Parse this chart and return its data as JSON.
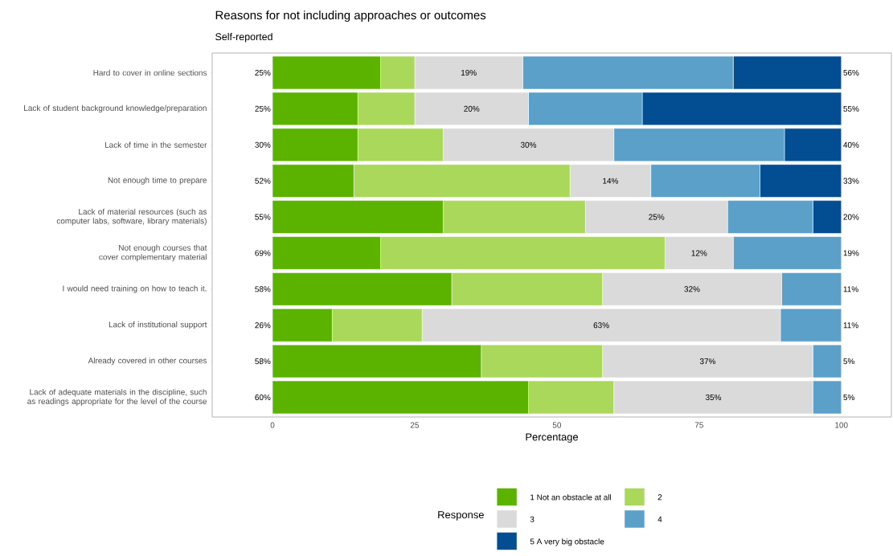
{
  "chart_data": {
    "type": "bar",
    "orientation": "horizontal",
    "stacked": true,
    "title": "Reasons for not including approaches or outcomes",
    "subtitle": "Self-reported",
    "xlabel": "Percentage",
    "legend_title": "Response",
    "legend": "bottom",
    "categories": [
      "Hard to cover in online sections",
      "Lack of student background knowledge/preparation",
      "Lack of time in the semester",
      "Not enough time to prepare",
      "Lack of material resources (such as computer labs, software, library materials)",
      "Not enough courses that cover complementary material",
      "I would need training on how to teach it.",
      "Lack of institutional support",
      "Already covered in other courses",
      "Lack of adequate materials in the discipline, such as readings appropriate for the level of the course"
    ],
    "series": [
      {
        "name": "1  Not an obstacle at all",
        "color": "#5bb300",
        "values": [
          19,
          15,
          15,
          14.3,
          30,
          19,
          31.5,
          10.5,
          36.7,
          45
        ]
      },
      {
        "name": "2",
        "color": "#a9d85b",
        "values": [
          6,
          10,
          15,
          38,
          25,
          50,
          26.5,
          15.8,
          21.3,
          15
        ]
      },
      {
        "name": "3",
        "color": "#dadada",
        "values": [
          19,
          20,
          30,
          14.2,
          25,
          12,
          31.5,
          63,
          37,
          35
        ]
      },
      {
        "name": "4",
        "color": "#5aa0c8",
        "values": [
          37,
          20,
          30,
          19.2,
          15,
          19,
          10.5,
          10.7,
          5,
          5
        ]
      },
      {
        "name": "5 A very big obstacle",
        "color": "#034d92",
        "values": [
          19,
          35,
          10,
          14.3,
          5,
          0,
          0,
          0,
          0,
          0
        ]
      }
    ],
    "xlim": [
      -10.6,
      108.8
    ],
    "xticks": [
      0,
      25,
      50,
      75,
      100
    ],
    "annotations": [
      "25%",
      "19%",
      "56%",
      "25%",
      "20%",
      "55%",
      "30%",
      "30%",
      "40%",
      "52%",
      "14%",
      "33%",
      "55%",
      "25%",
      "20%",
      "69%",
      "12%",
      "19%",
      "58%",
      "32%",
      "11%",
      "26%",
      "63%",
      "11%",
      "58%",
      "37%",
      "5%",
      "60%",
      "35%",
      "5%"
    ]
  }
}
